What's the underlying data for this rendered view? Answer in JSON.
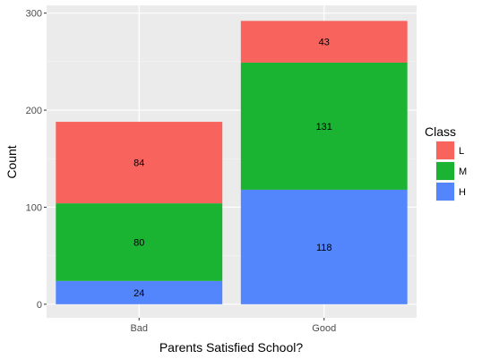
{
  "chart_data": {
    "type": "bar",
    "stacked": true,
    "categories": [
      "Bad",
      "Good"
    ],
    "series": [
      {
        "name": "H",
        "values": [
          24,
          118
        ],
        "color": "#5385FC"
      },
      {
        "name": "M",
        "values": [
          80,
          131
        ],
        "color": "#1AB332"
      },
      {
        "name": "L",
        "values": [
          84,
          43
        ],
        "color": "#F8635E"
      }
    ],
    "xlabel": "Parents Satisfied School?",
    "ylabel": "Count",
    "ylim": [
      -14,
      308
    ],
    "yticks": [
      0,
      100,
      200,
      300
    ],
    "grid": true,
    "legend": {
      "title": "Class",
      "placement": "right",
      "entries": [
        "L",
        "M",
        "H"
      ]
    }
  }
}
